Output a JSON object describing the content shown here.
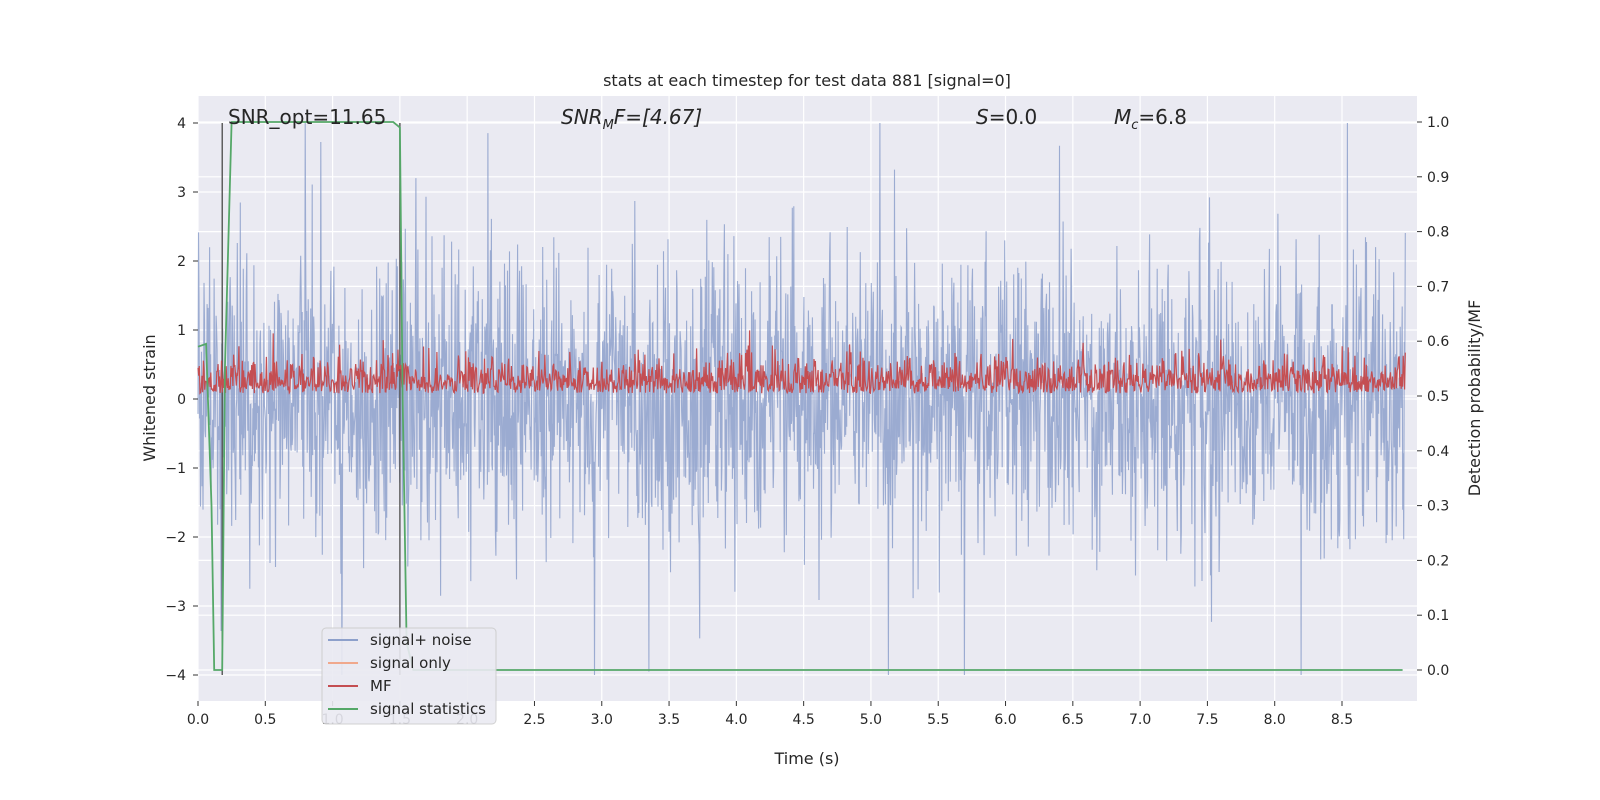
{
  "chart_data": {
    "type": "line",
    "title": "stats at each timestep for test data 881 [signal=0]",
    "xlabel": "Time (s)",
    "ylabel_left": "Whitened strain",
    "ylabel_right": "Detection probability/MF",
    "xlim": [
      0.0,
      9.0
    ],
    "ylim_left": [
      -4.4,
      4.4
    ],
    "ylim_right": [
      -0.05,
      1.05
    ],
    "x_ticks": [
      "0.0",
      "0.5",
      "1.0",
      "1.5",
      "2.0",
      "2.5",
      "3.0",
      "3.5",
      "4.0",
      "4.5",
      "5.0",
      "5.5",
      "6.0",
      "6.5",
      "7.0",
      "7.5",
      "8.0",
      "8.5"
    ],
    "y_ticks_left": [
      "4",
      "3",
      "2",
      "1",
      "0",
      "−1",
      "−2",
      "−3",
      "−4"
    ],
    "y_ticks_right": [
      "1.0",
      "0.9",
      "0.8",
      "0.7",
      "0.6",
      "0.5",
      "0.4",
      "0.3",
      "0.2",
      "0.1",
      "0.0"
    ],
    "grid": true,
    "legend_position": "lower-left",
    "colors": {
      "signal_noise": "#8da0cb",
      "signal_only": "#f0a88c",
      "mf": "#c44e52",
      "signal_statistics": "#55a868",
      "marker_line": "#555555",
      "background": "#eaeaf2"
    },
    "annotations": {
      "snr_opt": "SNR_opt=11.65",
      "snr_mf_sym": "SNR",
      "snr_mf_sub": "M",
      "snr_mf_rest": "F=[4.67]",
      "s_sym": "S",
      "s_rest": "=0.0",
      "mc_sym": "M",
      "mc_sub": "c",
      "mc_rest": "=6.8"
    },
    "series": [
      {
        "name": "signal+ noise",
        "axis": "left",
        "description_values": "dense noise, amplitude mostly within ±2.5, peaks near 4",
        "envelope_upper_sample": [
          2.3,
          2.9,
          2.5,
          3.0,
          2.6,
          3.2,
          2.4,
          3.6,
          2.7,
          3.3,
          3.1,
          2.6,
          2.9,
          3.4,
          2.8,
          3.0,
          3.2,
          4.0,
          2.9,
          3.1,
          3.3,
          2.8,
          3.0,
          3.5,
          3.7,
          3.3,
          2.9,
          3.1,
          3.0,
          3.2
        ],
        "envelope_lower_sample": [
          -2.9,
          -3.0,
          -2.6,
          -2.8,
          -3.2,
          -2.7,
          -2.5,
          -2.9,
          -3.3,
          -2.8,
          -2.6,
          -3.1,
          -2.9,
          -2.7,
          -3.0,
          -2.8,
          -3.2,
          -2.9,
          -3.4,
          -2.7,
          -2.9,
          -3.1,
          -2.8,
          -3.0,
          -3.3,
          -4.0,
          -2.8,
          -3.0,
          -2.7,
          -2.9
        ]
      },
      {
        "name": "signal only",
        "axis": "left",
        "values": []
      },
      {
        "name": "MF",
        "axis": "right",
        "description_values": "noisy trace mostly between 0.50 and 0.60 with spikes up to about 0.62"
      },
      {
        "name": "signal statistics",
        "axis": "right",
        "x": [
          0.0,
          0.06,
          0.1,
          0.12,
          0.18,
          0.2,
          0.25,
          1.45,
          1.5,
          1.52,
          1.55,
          1.6,
          2.1,
          2.2,
          8.95
        ],
        "values": [
          0.59,
          0.595,
          0.3,
          0.0,
          0.0,
          0.55,
          1.0,
          1.0,
          0.99,
          0.5,
          0.05,
          0.0,
          0.0,
          0.0,
          0.0
        ]
      }
    ],
    "marker_lines_x": [
      0.18,
      1.5
    ]
  }
}
